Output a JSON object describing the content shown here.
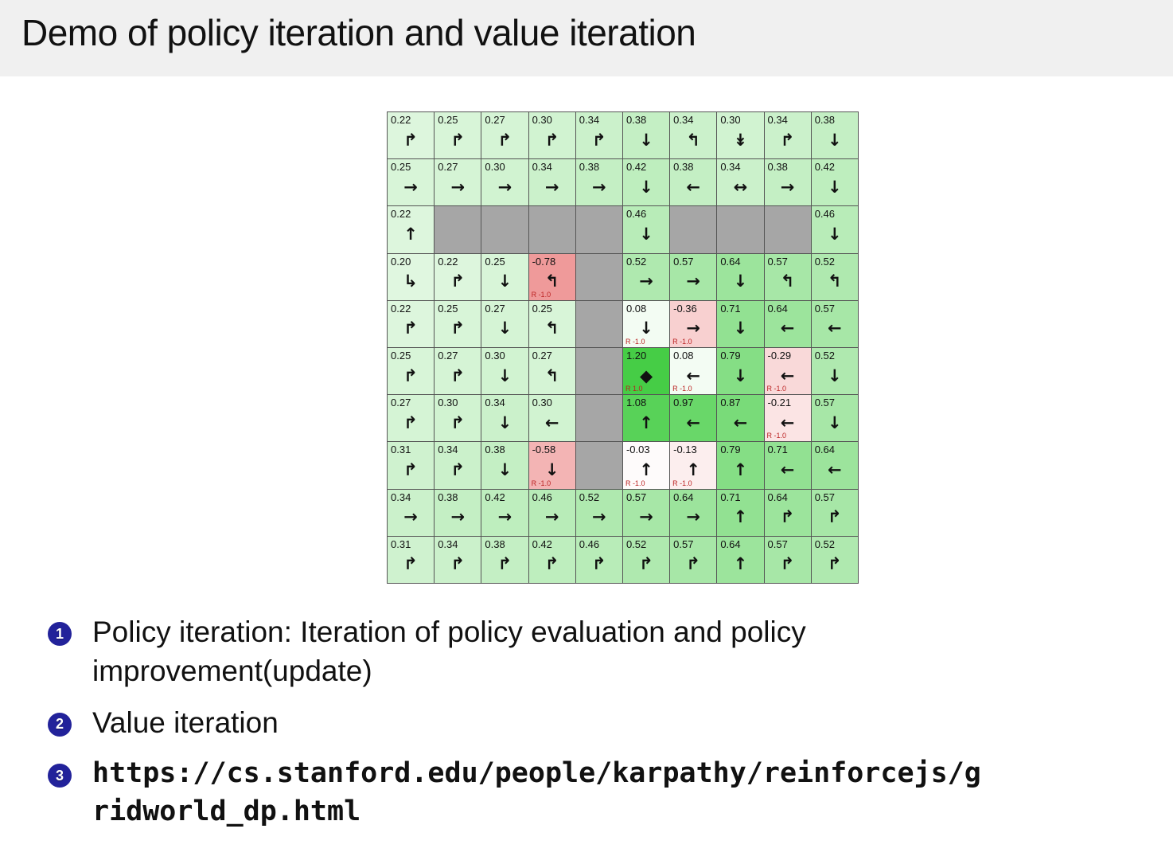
{
  "slide": {
    "title": "Demo of policy iteration and value iteration",
    "bullets": [
      {
        "num": "1",
        "text": "Policy iteration: Iteration of policy evaluation and policy improvement(update)"
      },
      {
        "num": "2",
        "text": "Value iteration"
      },
      {
        "num": "3",
        "text": "https://cs.stanford.edu/people/karpathy/reinforcejs/gridworld_dp.html"
      }
    ]
  },
  "colors": {
    "wall": "#a6a6a6",
    "grid_border": "#555555",
    "reward_text": "#bb2222",
    "badge_blue": "#22229a",
    "header_bg": "#f0f0f0",
    "title_color": "#111111",
    "goal_green": "#46cd46",
    "penalty_pink": "#f2a0a0"
  },
  "gridworld": {
    "rows": 10,
    "cols": 10,
    "cells": [
      [
        {
          "v": "0.22",
          "a": "↱"
        },
        {
          "v": "0.25",
          "a": "↱"
        },
        {
          "v": "0.27",
          "a": "↱"
        },
        {
          "v": "0.30",
          "a": "↱"
        },
        {
          "v": "0.34",
          "a": "↱"
        },
        {
          "v": "0.38",
          "a": "↓"
        },
        {
          "v": "0.34",
          "a": "↰"
        },
        {
          "v": "0.30",
          "a": "↡"
        },
        {
          "v": "0.34",
          "a": "↱"
        },
        {
          "v": "0.38",
          "a": "↓"
        }
      ],
      [
        {
          "v": "0.25",
          "a": "→"
        },
        {
          "v": "0.27",
          "a": "→"
        },
        {
          "v": "0.30",
          "a": "→"
        },
        {
          "v": "0.34",
          "a": "→"
        },
        {
          "v": "0.38",
          "a": "→"
        },
        {
          "v": "0.42",
          "a": "↓"
        },
        {
          "v": "0.38",
          "a": "←"
        },
        {
          "v": "0.34",
          "a": "↔"
        },
        {
          "v": "0.38",
          "a": "→"
        },
        {
          "v": "0.42",
          "a": "↓"
        }
      ],
      [
        {
          "v": "0.22",
          "a": "↑"
        },
        {
          "wall": true
        },
        {
          "wall": true
        },
        {
          "wall": true
        },
        {
          "wall": true
        },
        {
          "v": "0.46",
          "a": "↓"
        },
        {
          "wall": true
        },
        {
          "wall": true
        },
        {
          "wall": true
        },
        {
          "v": "0.46",
          "a": "↓"
        }
      ],
      [
        {
          "v": "0.20",
          "a": "↳"
        },
        {
          "v": "0.22",
          "a": "↱"
        },
        {
          "v": "0.25",
          "a": "↓"
        },
        {
          "v": "-0.78",
          "a": "↰",
          "r": "R -1.0"
        },
        {
          "wall": true
        },
        {
          "v": "0.52",
          "a": "→"
        },
        {
          "v": "0.57",
          "a": "→"
        },
        {
          "v": "0.64",
          "a": "↓"
        },
        {
          "v": "0.57",
          "a": "↰"
        },
        {
          "v": "0.52",
          "a": "↰"
        }
      ],
      [
        {
          "v": "0.22",
          "a": "↱"
        },
        {
          "v": "0.25",
          "a": "↱"
        },
        {
          "v": "0.27",
          "a": "↓"
        },
        {
          "v": "0.25",
          "a": "↰"
        },
        {
          "wall": true
        },
        {
          "v": "0.08",
          "a": "↓",
          "r": "R -1.0"
        },
        {
          "v": "-0.36",
          "a": "→",
          "r": "R -1.0"
        },
        {
          "v": "0.71",
          "a": "↓"
        },
        {
          "v": "0.64",
          "a": "←"
        },
        {
          "v": "0.57",
          "a": "←"
        }
      ],
      [
        {
          "v": "0.25",
          "a": "↱"
        },
        {
          "v": "0.27",
          "a": "↱"
        },
        {
          "v": "0.30",
          "a": "↓"
        },
        {
          "v": "0.27",
          "a": "↰"
        },
        {
          "wall": true
        },
        {
          "v": "1.20",
          "a": "◆",
          "r": "R 1.0"
        },
        {
          "v": "0.08",
          "a": "←",
          "r": "R -1.0"
        },
        {
          "v": "0.79",
          "a": "↓"
        },
        {
          "v": "-0.29",
          "a": "←",
          "r": "R -1.0"
        },
        {
          "v": "0.52",
          "a": "↓"
        }
      ],
      [
        {
          "v": "0.27",
          "a": "↱"
        },
        {
          "v": "0.30",
          "a": "↱"
        },
        {
          "v": "0.34",
          "a": "↓"
        },
        {
          "v": "0.30",
          "a": "←"
        },
        {
          "wall": true
        },
        {
          "v": "1.08",
          "a": "↑"
        },
        {
          "v": "0.97",
          "a": "←"
        },
        {
          "v": "0.87",
          "a": "←"
        },
        {
          "v": "-0.21",
          "a": "←",
          "r": "R -1.0"
        },
        {
          "v": "0.57",
          "a": "↓"
        }
      ],
      [
        {
          "v": "0.31",
          "a": "↱"
        },
        {
          "v": "0.34",
          "a": "↱"
        },
        {
          "v": "0.38",
          "a": "↓"
        },
        {
          "v": "-0.58",
          "a": "↓",
          "r": "R -1.0"
        },
        {
          "wall": true
        },
        {
          "v": "-0.03",
          "a": "↑",
          "r": "R -1.0"
        },
        {
          "v": "-0.13",
          "a": "↑",
          "r": "R -1.0"
        },
        {
          "v": "0.79",
          "a": "↑"
        },
        {
          "v": "0.71",
          "a": "←"
        },
        {
          "v": "0.64",
          "a": "←"
        }
      ],
      [
        {
          "v": "0.34",
          "a": "→"
        },
        {
          "v": "0.38",
          "a": "→"
        },
        {
          "v": "0.42",
          "a": "→"
        },
        {
          "v": "0.46",
          "a": "→"
        },
        {
          "v": "0.52",
          "a": "→"
        },
        {
          "v": "0.57",
          "a": "→"
        },
        {
          "v": "0.64",
          "a": "→"
        },
        {
          "v": "0.71",
          "a": "↑"
        },
        {
          "v": "0.64",
          "a": "↱"
        },
        {
          "v": "0.57",
          "a": "↱"
        }
      ],
      [
        {
          "v": "0.31",
          "a": "↱"
        },
        {
          "v": "0.34",
          "a": "↱"
        },
        {
          "v": "0.38",
          "a": "↱"
        },
        {
          "v": "0.42",
          "a": "↱"
        },
        {
          "v": "0.46",
          "a": "↱"
        },
        {
          "v": "0.52",
          "a": "↱"
        },
        {
          "v": "0.57",
          "a": "↱"
        },
        {
          "v": "0.64",
          "a": "↑"
        },
        {
          "v": "0.57",
          "a": "↱"
        },
        {
          "v": "0.52",
          "a": "↱"
        }
      ]
    ]
  }
}
